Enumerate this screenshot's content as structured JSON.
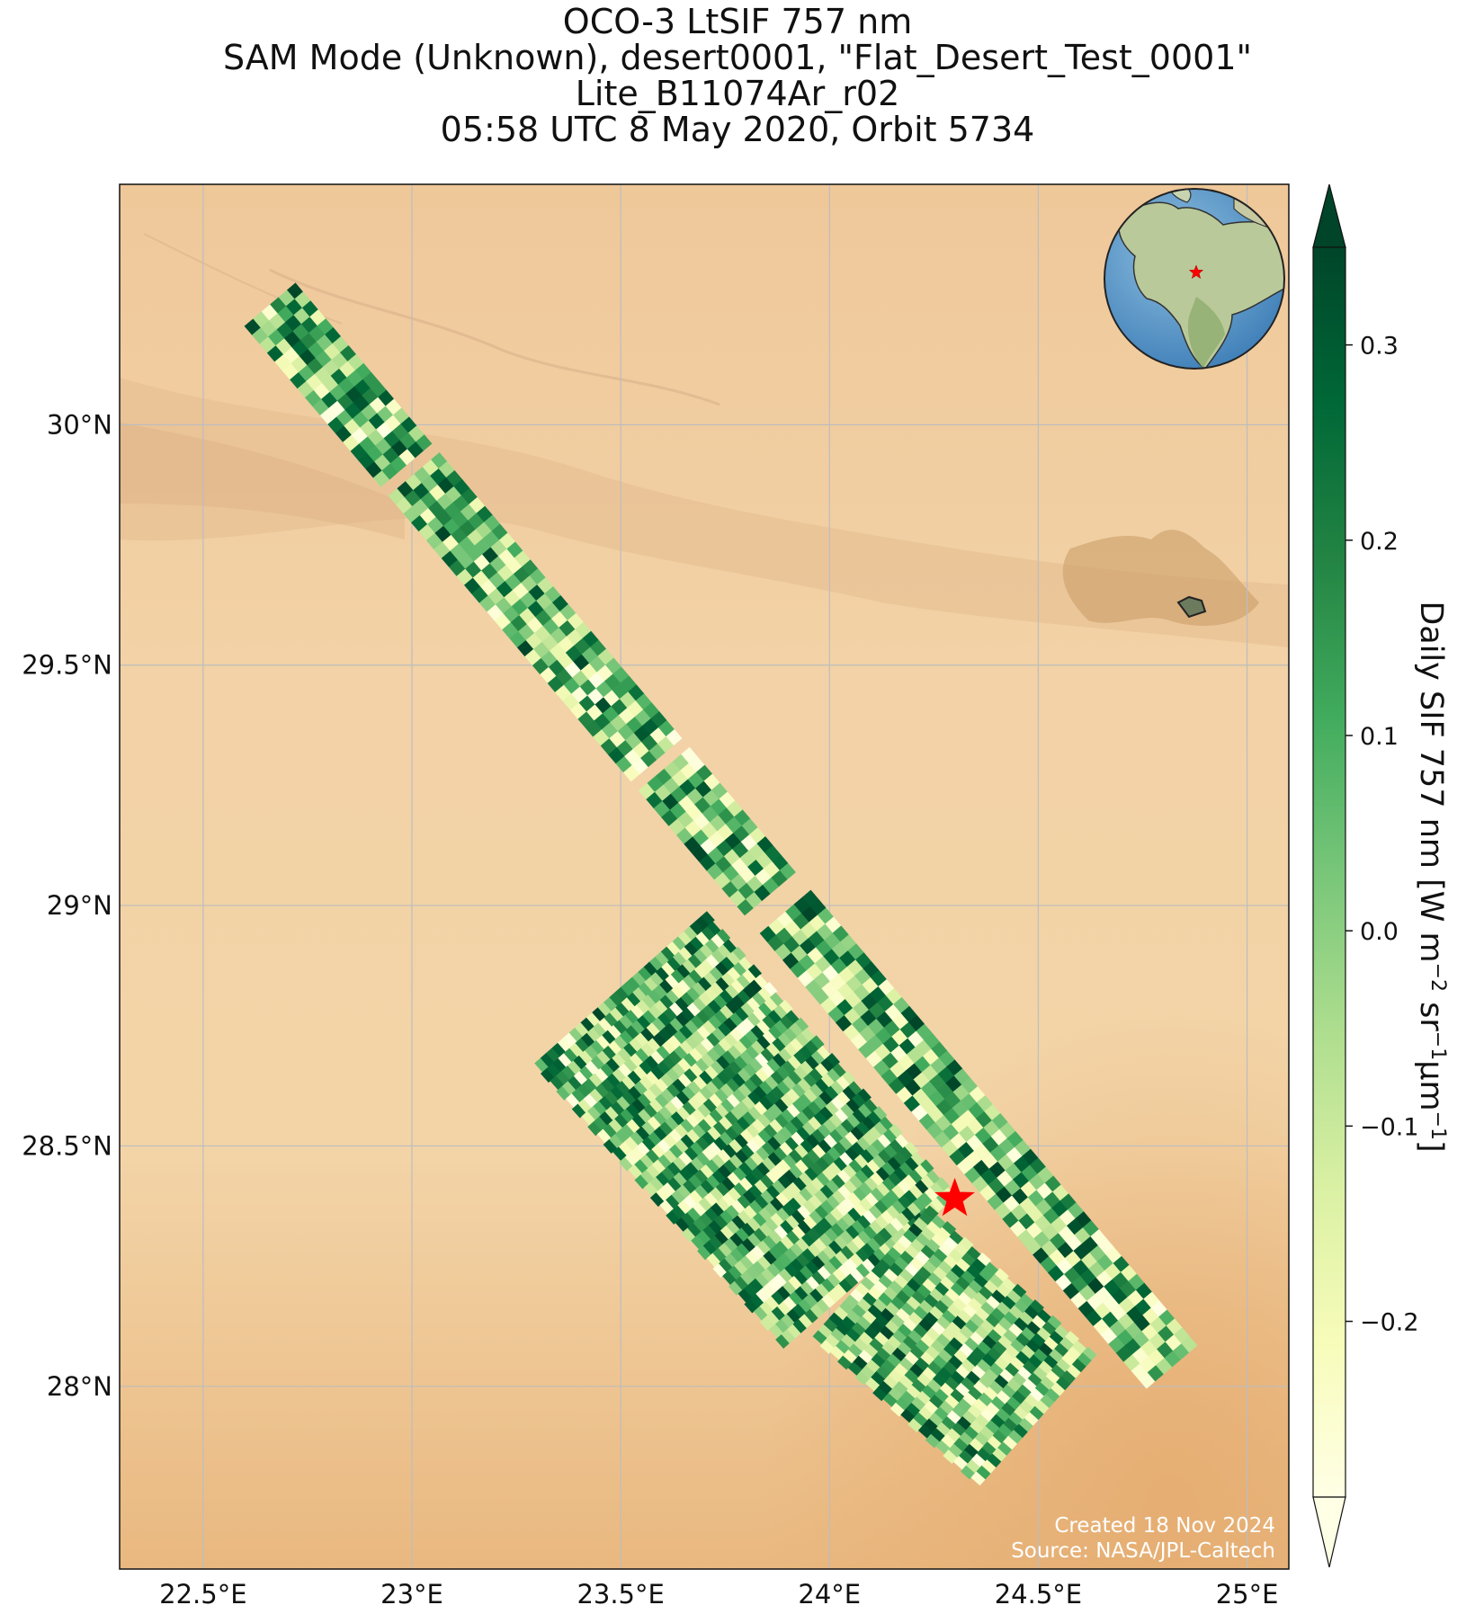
{
  "title_lines": [
    "OCO-3 LtSIF 757 nm",
    "SAM Mode (Unknown), desert0001, \"Flat_Desert_Test_0001\"",
    "Lite_B11074Ar_r02",
    "05:58 UTC 8 May 2020, Orbit 5734"
  ],
  "map": {
    "lon_range": [
      22.3,
      25.1
    ],
    "lat_range": [
      27.62,
      30.5
    ],
    "lon_ticks": [
      {
        "value": 22.5,
        "label": "22.5°E"
      },
      {
        "value": 23.0,
        "label": "23°E"
      },
      {
        "value": 23.5,
        "label": "23.5°E"
      },
      {
        "value": 24.0,
        "label": "24°E"
      },
      {
        "value": 24.5,
        "label": "24.5°E"
      },
      {
        "value": 25.0,
        "label": "25°E"
      }
    ],
    "lat_ticks": [
      {
        "value": 30.0,
        "label": "30°N"
      },
      {
        "value": 29.5,
        "label": "29.5°N"
      },
      {
        "value": 29.0,
        "label": "29°N"
      },
      {
        "value": 28.5,
        "label": "28.5°N"
      },
      {
        "value": 28.0,
        "label": "28°N"
      }
    ],
    "grid": true,
    "basemap": "desert",
    "target_marker": {
      "lon": 24.3,
      "lat": 28.39,
      "shape": "star",
      "color": "#ff0000"
    },
    "inset_globe": {
      "position": "top-right",
      "marker_color": "#ff0000",
      "marker_shape": "star"
    },
    "credits": [
      "Created 18 Nov 2024",
      "Source: NASA/JPL-Caltech"
    ]
  },
  "chart_data": {
    "type": "heatmap",
    "colormap": "YlGn",
    "vmin": -0.29,
    "vmax": 0.35,
    "value_note": "footprint values are random visual approximation of SIF soundings",
    "swaths": [
      {
        "start": [
          22.66,
          30.25
        ],
        "end": [
          24.82,
          28.04
        ],
        "width_deg": 0.16,
        "gaps": [
          0.15,
          0.43,
          0.56
        ],
        "cross": 6
      },
      {
        "start": [
          23.5,
          28.83
        ],
        "end": [
          24.1,
          28.24
        ],
        "width_deg": 0.55,
        "gaps": [],
        "cross": 30
      },
      {
        "start": [
          24.1,
          28.24
        ],
        "end": [
          24.5,
          27.93
        ],
        "width_deg": 0.42,
        "gaps": [],
        "cross": 22
      }
    ]
  },
  "colorbar": {
    "ticks": [
      {
        "value": 0.3,
        "label": "0.3"
      },
      {
        "value": 0.2,
        "label": "0.2"
      },
      {
        "value": 0.1,
        "label": "0.1"
      },
      {
        "value": 0.0,
        "label": "0.0"
      },
      {
        "value": -0.1,
        "label": "−0.1"
      },
      {
        "value": -0.2,
        "label": "−0.2"
      }
    ],
    "extend": "both",
    "label_main": "Daily SIF 757 nm [W m",
    "label_sup1": "−2",
    "label_mid": " sr",
    "label_sup2": "−1",
    "label_mid2": "μm",
    "label_sup3": "−1",
    "label_end": "]"
  }
}
